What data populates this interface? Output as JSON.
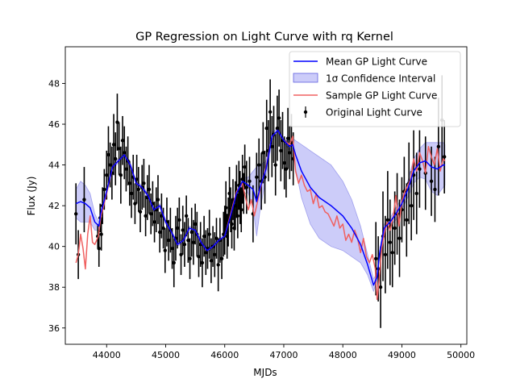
{
  "chart_data": {
    "type": "line",
    "title": "GP Regression on Light Curve with rq Kernel",
    "xlabel": "MJDs",
    "ylabel": "Flux (Jy)",
    "xlim": [
      43300,
      50100
    ],
    "ylim": [
      35.2,
      49.8
    ],
    "x_ticks": [
      44000,
      45000,
      46000,
      47000,
      48000,
      49000,
      50000
    ],
    "x_tick_labels": [
      "44000",
      "45000",
      "46000",
      "47000",
      "48000",
      "49000",
      "50000"
    ],
    "y_ticks": [
      36,
      38,
      40,
      42,
      44,
      46,
      48
    ],
    "y_tick_labels": [
      "36",
      "38",
      "40",
      "42",
      "44",
      "46",
      "48"
    ],
    "grid": false,
    "legend_position": "top-right",
    "colors": {
      "mean": "#0000ff",
      "band": "#8080f0",
      "sample": "#f06060",
      "observed": "#000000"
    },
    "series": [
      {
        "name": "Mean GP Light Curve",
        "kind": "line",
        "x": [
          43480,
          43560,
          43640,
          43720,
          43800,
          43870,
          43900,
          44000,
          44100,
          44200,
          44300,
          44400,
          44500,
          44600,
          44700,
          44800,
          44900,
          45000,
          45100,
          45200,
          45300,
          45400,
          45500,
          45600,
          45700,
          45800,
          45900,
          46000,
          46100,
          46200,
          46300,
          46400,
          46480,
          46540,
          46600,
          46700,
          46800,
          46900,
          47000,
          47100,
          47150,
          47200,
          47300,
          47450,
          47600,
          47800,
          48000,
          48150,
          48300,
          48420,
          48520,
          48580,
          48620,
          48700,
          48800,
          48900,
          49000,
          49100,
          49200,
          49300,
          49400,
          49500,
          49600,
          49700,
          49730
        ],
        "y": [
          42.1,
          42.2,
          42.1,
          41.9,
          41.2,
          41.0,
          41.6,
          42.7,
          43.9,
          44.2,
          44.5,
          44.0,
          43.1,
          42.9,
          42.5,
          41.8,
          42.0,
          41.2,
          40.7,
          40.1,
          40.3,
          40.9,
          40.8,
          40.2,
          39.8,
          40.0,
          40.3,
          40.5,
          41.5,
          42.6,
          43.2,
          43.0,
          42.8,
          42.2,
          42.9,
          43.8,
          45.4,
          45.7,
          45.2,
          44.9,
          45.0,
          44.5,
          43.7,
          42.9,
          42.4,
          42.0,
          41.5,
          40.9,
          40.1,
          39.1,
          38.1,
          38.5,
          39.6,
          40.9,
          41.2,
          41.6,
          42.1,
          42.8,
          43.7,
          44.1,
          44.2,
          43.9,
          43.8,
          44.0,
          44.0
        ]
      },
      {
        "name": "1σ Confidence Interval",
        "kind": "band",
        "x": [
          43480,
          43560,
          43640,
          43720,
          43800,
          43870,
          43900,
          44000,
          44100,
          44200,
          44300,
          44400,
          44500,
          44600,
          44700,
          44800,
          44900,
          45000,
          45100,
          45200,
          45300,
          45400,
          45500,
          45600,
          45700,
          45800,
          45900,
          46000,
          46100,
          46200,
          46300,
          46400,
          46480,
          46540,
          46600,
          46700,
          46800,
          46900,
          47000,
          47100,
          47150,
          47200,
          47300,
          47450,
          47600,
          47800,
          48000,
          48150,
          48300,
          48420,
          48520,
          48580,
          48620,
          48700,
          48800,
          48900,
          49000,
          49100,
          49200,
          49300,
          49400,
          49500,
          49600,
          49700,
          49730
        ],
        "upper": [
          42.8,
          43.2,
          43.0,
          42.6,
          41.6,
          41.2,
          41.8,
          42.8,
          44.0,
          44.3,
          44.6,
          44.1,
          43.2,
          43.0,
          42.6,
          41.9,
          42.1,
          41.3,
          40.8,
          40.2,
          40.4,
          41.0,
          40.9,
          40.3,
          39.9,
          40.1,
          40.4,
          40.6,
          41.6,
          42.7,
          43.4,
          43.4,
          43.7,
          43.9,
          44.0,
          44.2,
          45.6,
          45.8,
          45.3,
          45.1,
          45.3,
          45.2,
          45.0,
          44.7,
          44.4,
          44.0,
          43.2,
          42.3,
          41.0,
          39.6,
          38.4,
          38.7,
          39.8,
          41.1,
          41.4,
          41.9,
          42.4,
          43.2,
          44.3,
          44.8,
          45.1,
          45.1,
          45.1,
          45.1,
          45.0
        ],
        "lower": [
          41.4,
          41.2,
          41.2,
          41.2,
          40.8,
          40.8,
          41.4,
          42.6,
          43.8,
          44.1,
          44.4,
          43.9,
          43.0,
          42.8,
          42.4,
          41.7,
          41.9,
          41.1,
          40.6,
          40.0,
          40.2,
          40.8,
          40.7,
          40.1,
          39.7,
          39.9,
          40.2,
          40.4,
          41.4,
          42.5,
          43.0,
          42.6,
          41.9,
          40.5,
          41.8,
          43.4,
          45.2,
          45.6,
          45.1,
          44.7,
          44.7,
          43.8,
          42.4,
          41.1,
          40.4,
          40.0,
          39.8,
          39.5,
          39.2,
          38.6,
          37.8,
          38.3,
          39.4,
          40.7,
          41.0,
          41.3,
          41.8,
          42.4,
          43.1,
          43.4,
          43.3,
          42.7,
          42.5,
          42.9,
          43.0
        ]
      },
      {
        "name": "Sample GP Light Curve",
        "kind": "line",
        "x": [
          43480,
          43520,
          43560,
          43600,
          43640,
          43680,
          43720,
          43760,
          43800,
          43860,
          43900,
          44000,
          44100,
          44200,
          44300,
          44400,
          44500,
          44600,
          44700,
          44800,
          44900,
          45000,
          45100,
          45200,
          45300,
          45400,
          45500,
          45600,
          45700,
          45800,
          45900,
          46000,
          46100,
          46200,
          46300,
          46350,
          46400,
          46450,
          46500,
          46540,
          46600,
          46700,
          46800,
          46900,
          47000,
          47100,
          47150,
          47200,
          47250,
          47300,
          47350,
          47400,
          47450,
          47500,
          47550,
          47600,
          47650,
          47700,
          47750,
          47800,
          47850,
          47900,
          47950,
          48000,
          48050,
          48100,
          48150,
          48200,
          48250,
          48300,
          48350,
          48400,
          48450,
          48500,
          48550,
          48580,
          48620,
          48660,
          48700,
          48750,
          48800,
          48850,
          48900,
          48950,
          49000,
          49050,
          49100,
          49150,
          49200,
          49250,
          49300,
          49350,
          49400,
          49450,
          49500,
          49550,
          49600,
          49650,
          49700,
          49730
        ],
        "y": [
          39.2,
          39.6,
          40.6,
          39.9,
          38.9,
          40.6,
          41.5,
          40.2,
          40.1,
          40.5,
          41.4,
          42.6,
          43.9,
          44.2,
          44.5,
          44.0,
          43.1,
          42.9,
          42.5,
          41.8,
          42.0,
          41.2,
          40.7,
          40.1,
          40.3,
          40.9,
          40.8,
          40.2,
          39.8,
          40.0,
          40.3,
          40.5,
          41.6,
          42.7,
          43.1,
          42.4,
          41.8,
          42.3,
          41.5,
          42.0,
          42.8,
          43.9,
          45.4,
          45.7,
          45.2,
          45.0,
          45.4,
          43.7,
          43.1,
          43.5,
          43.0,
          42.7,
          42.8,
          42.1,
          42.6,
          41.9,
          42.0,
          41.7,
          41.6,
          41.3,
          41.0,
          41.5,
          40.9,
          41.1,
          40.3,
          40.6,
          40.2,
          40.8,
          40.4,
          39.7,
          40.4,
          39.5,
          39.2,
          39.6,
          38.9,
          37.4,
          38.5,
          39.9,
          40.6,
          41.2,
          40.8,
          41.4,
          42.5,
          41.0,
          42.2,
          42.7,
          43.0,
          43.3,
          44.3,
          43.7,
          44.6,
          44.2,
          43.6,
          44.9,
          44.4,
          44.0,
          44.8,
          43.7,
          44.3,
          44.2
        ]
      },
      {
        "name": "Original Light Curve",
        "kind": "errorbar",
        "x": [
          43480,
          43520,
          43620,
          43850,
          43870,
          43890,
          43910,
          43930,
          43960,
          44000,
          44030,
          44060,
          44090,
          44120,
          44150,
          44180,
          44210,
          44240,
          44270,
          44300,
          44330,
          44360,
          44390,
          44420,
          44450,
          44480,
          44510,
          44540,
          44570,
          44600,
          44630,
          44660,
          44690,
          44720,
          44750,
          44780,
          44810,
          44840,
          44870,
          44900,
          44930,
          44960,
          44990,
          45020,
          45050,
          45080,
          45110,
          45140,
          45170,
          45200,
          45230,
          45260,
          45290,
          45320,
          45350,
          45380,
          45410,
          45440,
          45470,
          45500,
          45530,
          45560,
          45590,
          45620,
          45650,
          45680,
          45710,
          45740,
          45770,
          45800,
          45830,
          45860,
          45890,
          45920,
          45950,
          45980,
          46000,
          46020,
          46040,
          46060,
          46080,
          46100,
          46120,
          46140,
          46160,
          46180,
          46200,
          46220,
          46240,
          46260,
          46280,
          46300,
          46320,
          46340,
          46370,
          46420,
          46480,
          46540,
          46580,
          46620,
          46650,
          46680,
          46710,
          46740,
          46770,
          46800,
          46830,
          46860,
          46890,
          46920,
          46950,
          46980,
          47010,
          47040,
          47070,
          47100,
          47130,
          47160,
          48560,
          48600,
          48640,
          48680,
          48720,
          48760,
          48800,
          48840,
          48880,
          48920,
          48960,
          49000,
          49040,
          49080,
          49120,
          49160,
          49200,
          49250,
          49300,
          49400,
          49500,
          49560,
          49620,
          49680,
          49720
        ],
        "y": [
          41.6,
          39.6,
          42.3,
          40.5,
          39.9,
          41.4,
          40.6,
          42.0,
          42.8,
          43.5,
          44.5,
          44.0,
          43.6,
          45.0,
          44.3,
          46.1,
          44.8,
          43.5,
          45.2,
          44.6,
          43.8,
          44.2,
          43.1,
          42.6,
          43.4,
          42.1,
          43.3,
          42.8,
          41.7,
          42.9,
          43.1,
          41.5,
          42.4,
          42.8,
          41.6,
          42.1,
          41.2,
          41.8,
          42.3,
          40.7,
          41.5,
          40.9,
          39.8,
          41.2,
          40.3,
          40.8,
          39.9,
          39.2,
          40.4,
          40.9,
          41.3,
          39.6,
          40.8,
          40.1,
          41.5,
          40.3,
          39.4,
          40.7,
          40.2,
          41.1,
          40.6,
          39.5,
          40.1,
          39.2,
          40.5,
          39.7,
          39.9,
          40.6,
          39.3,
          40.0,
          39.6,
          40.4,
          39.1,
          40.3,
          39.4,
          40.6,
          40.8,
          41.9,
          40.5,
          41.2,
          42.6,
          41.8,
          41.1,
          42.3,
          40.9,
          42.0,
          42.7,
          41.5,
          43.0,
          42.4,
          41.8,
          43.3,
          42.6,
          43.9,
          42.9,
          43.2,
          41.6,
          43.4,
          44.0,
          43.2,
          44.6,
          43.4,
          45.8,
          44.7,
          46.6,
          44.9,
          45.5,
          44.0,
          45.8,
          46.3,
          44.7,
          45.2,
          44.1,
          43.8,
          45.3,
          44.6,
          45.1,
          44.3,
          39.4,
          38.9,
          38.0,
          40.5,
          39.6,
          41.3,
          40.2,
          39.7,
          40.9,
          41.6,
          40.4,
          41.8,
          42.7,
          41.3,
          43.1,
          42.0,
          43.5,
          42.6,
          43.8,
          43.6,
          43.2,
          42.8,
          44.9,
          46.2,
          44.4
        ],
        "yerr": [
          1.5,
          1.2,
          1.6,
          0.6,
          0.9,
          0.7,
          0.8,
          0.9,
          1.0,
          1.2,
          1.4,
          1.1,
          1.3,
          1.5,
          1.3,
          1.4,
          1.3,
          1.4,
          1.2,
          1.3,
          1.1,
          1.2,
          1.1,
          1.2,
          1.1,
          1.0,
          1.2,
          1.1,
          1.0,
          1.1,
          1.2,
          1.0,
          1.1,
          1.2,
          1.0,
          1.1,
          1.0,
          1.1,
          1.2,
          1.0,
          1.1,
          1.0,
          1.1,
          1.2,
          1.0,
          1.1,
          1.0,
          1.2,
          1.1,
          1.0,
          1.1,
          1.0,
          1.2,
          1.1,
          1.0,
          1.1,
          1.0,
          1.2,
          1.1,
          1.0,
          1.1,
          1.0,
          1.1,
          1.2,
          1.0,
          1.1,
          1.0,
          1.2,
          1.1,
          1.0,
          1.1,
          1.0,
          1.3,
          1.1,
          1.0,
          1.1,
          1.2,
          1.3,
          1.1,
          1.2,
          1.3,
          1.1,
          1.2,
          1.0,
          1.1,
          1.2,
          1.3,
          1.1,
          1.2,
          1.3,
          1.1,
          1.2,
          1.0,
          1.1,
          1.3,
          1.2,
          1.4,
          1.2,
          1.3,
          1.4,
          1.5,
          1.3,
          1.4,
          1.5,
          1.6,
          1.5,
          1.4,
          1.5,
          1.6,
          1.4,
          1.5,
          1.4,
          1.3,
          1.4,
          1.5,
          1.3,
          1.4,
          1.3,
          1.8,
          1.6,
          2.0,
          2.2,
          1.9,
          2.4,
          2.1,
          1.7,
          1.8,
          2.0,
          1.9,
          1.6,
          1.7,
          1.8,
          2.0,
          1.7,
          2.2,
          2.0,
          1.9,
          1.8,
          1.7,
          1.6,
          2.4,
          2.2,
          1.8
        ]
      }
    ]
  }
}
